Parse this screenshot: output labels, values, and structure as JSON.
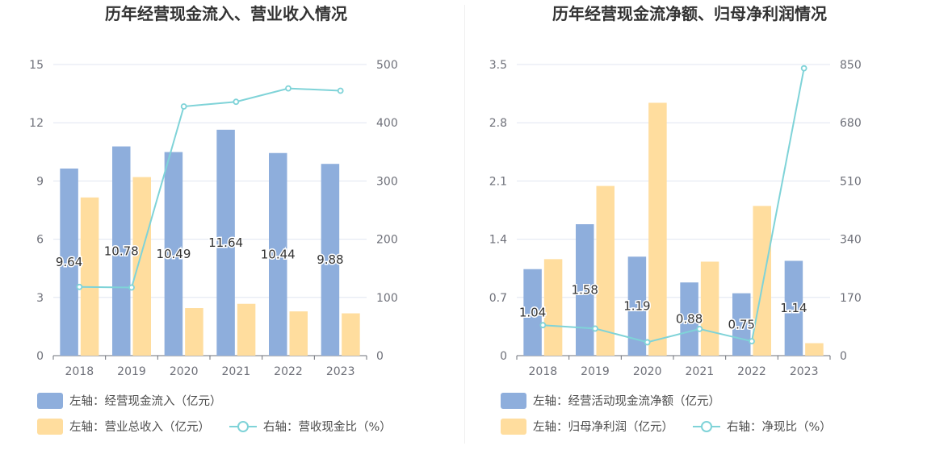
{
  "charts": [
    {
      "title": "历年经营现金流入、营业收入情况",
      "chart_data": {
        "type": "bar",
        "categories": [
          "2018",
          "2019",
          "2020",
          "2021",
          "2022",
          "2023"
        ],
        "series": [
          {
            "name": "左轴：经营现金流入（亿元）",
            "type": "bar",
            "axis": "left",
            "color": "#8eaedc",
            "values": [
              9.64,
              10.78,
              10.49,
              11.64,
              10.44,
              9.88
            ],
            "show_labels": true
          },
          {
            "name": "左轴：营业总收入（亿元）",
            "type": "bar",
            "axis": "left",
            "color": "#ffdd9e",
            "values": [
              8.15,
              9.2,
              2.45,
              2.67,
              2.28,
              2.18
            ],
            "show_labels": false
          },
          {
            "name": "右轴：营收现金比（%）",
            "type": "line",
            "axis": "right",
            "color": "#7fd3d8",
            "values": [
              118,
              117,
              428,
              436,
              459,
              455
            ],
            "show_labels": false
          }
        ],
        "y_left": {
          "min": 0,
          "max": 15,
          "ticks": [
            "0",
            "3",
            "6",
            "9",
            "12",
            "15"
          ]
        },
        "y_right": {
          "min": 0,
          "max": 500,
          "ticks": [
            "0",
            "100",
            "200",
            "300",
            "400",
            "500"
          ]
        },
        "grid": true,
        "legend_position": "bottom"
      }
    },
    {
      "title": "历年经营现金流净额、归母净利润情况",
      "chart_data": {
        "type": "bar",
        "categories": [
          "2018",
          "2019",
          "2020",
          "2021",
          "2022",
          "2023"
        ],
        "series": [
          {
            "name": "左轴：经营活动现金流净额（亿元）",
            "type": "bar",
            "axis": "left",
            "color": "#8eaedc",
            "values": [
              1.04,
              1.58,
              1.19,
              0.88,
              0.75,
              1.14
            ],
            "show_labels": true
          },
          {
            "name": "左轴：归母净利润（亿元）",
            "type": "bar",
            "axis": "left",
            "color": "#ffdd9e",
            "values": [
              1.16,
              2.04,
              3.04,
              1.13,
              1.8,
              0.15
            ],
            "show_labels": false
          },
          {
            "name": "右轴：净现比（%）",
            "type": "line",
            "axis": "right",
            "color": "#7fd3d8",
            "values": [
              89,
              79,
              39,
              78,
              42,
              839
            ],
            "show_labels": false
          }
        ],
        "y_left": {
          "min": 0,
          "max": 3.5,
          "ticks": [
            "0",
            "0.7",
            "1.4",
            "2.1",
            "2.8",
            "3.5"
          ]
        },
        "y_right": {
          "min": 0,
          "max": 850,
          "ticks": [
            "0",
            "170",
            "340",
            "510",
            "680",
            "850"
          ]
        },
        "grid": true,
        "legend_position": "bottom"
      }
    }
  ]
}
